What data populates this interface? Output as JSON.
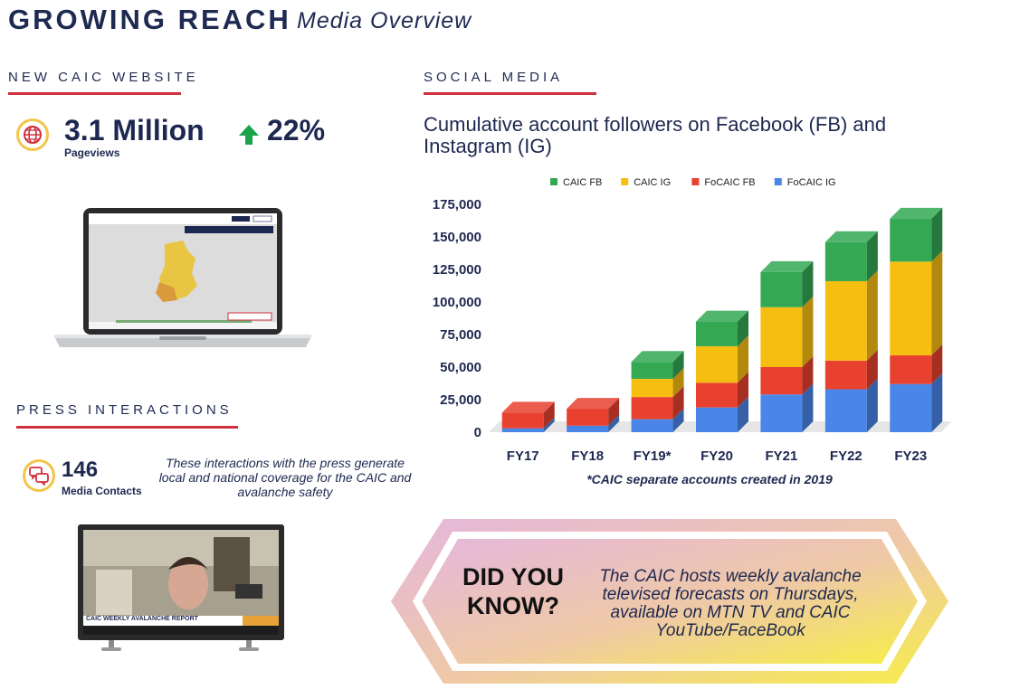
{
  "header": {
    "title": "GROWING REACH",
    "subtitle": "Media Overview"
  },
  "website": {
    "section_label": "NEW CAIC WEBSITE",
    "pageviews_value": "3.1 Million",
    "pageviews_label": "Pageviews",
    "change": "22%",
    "icon": "globe-icon",
    "change_icon": "arrow-up-icon"
  },
  "social": {
    "section_label": "SOCIAL MEDIA"
  },
  "press": {
    "section_label": "PRESS INTERACTIONS",
    "value": "146",
    "label": "Media Contacts",
    "note": "These interactions with the press generate local and national coverage for the CAIC and avalanche safety",
    "icon": "chat-bubbles-icon",
    "tv_caption": "CAIC WEEKLY AVALANCHE REPORT"
  },
  "did_you_know": {
    "heading": "DID YOU KNOW?",
    "body": "The CAIC hosts weekly avalanche televised forecasts on Thursdays, available on MTN TV and CAIC YouTube/FaceBook"
  },
  "colors": {
    "accent_red": "#d0303e",
    "badge_yellow": "#f2c54b",
    "navy": "#1d2850",
    "up_green": "#1aa34a"
  },
  "chart_data": {
    "type": "bar",
    "stacked": true,
    "title": "Cumulative account followers on Facebook (FB) and Instagram (IG)",
    "categories": [
      "FY17",
      "FY18",
      "FY19*",
      "FY20",
      "FY21",
      "FY22",
      "FY23"
    ],
    "series": [
      {
        "name": "FoCAIC IG",
        "color": "#4a86e8",
        "values": [
          3000,
          5000,
          10000,
          19000,
          29000,
          33000,
          37000
        ]
      },
      {
        "name": "FoCAIC FB",
        "color": "#e8412f",
        "values": [
          12000,
          13000,
          17000,
          19000,
          21000,
          22000,
          22000
        ]
      },
      {
        "name": "CAIC IG",
        "color": "#f7be12",
        "values": [
          0,
          0,
          14000,
          28000,
          46000,
          61000,
          72000
        ]
      },
      {
        "name": "CAIC FB",
        "color": "#34a853",
        "values": [
          0,
          0,
          13000,
          19000,
          27000,
          30000,
          33000
        ]
      }
    ],
    "legend_order": [
      "CAIC FB",
      "CAIC IG",
      "FoCAIC FB",
      "FoCAIC IG"
    ],
    "yticks": [
      "175,000",
      "150,000",
      "125,000",
      "100,000",
      "75,000",
      "50,000",
      "25,000",
      "0"
    ],
    "ylim": [
      0,
      175000
    ],
    "legend": "top",
    "footnote": "*CAIC separate accounts created in 2019",
    "xlabel": "",
    "ylabel": ""
  }
}
